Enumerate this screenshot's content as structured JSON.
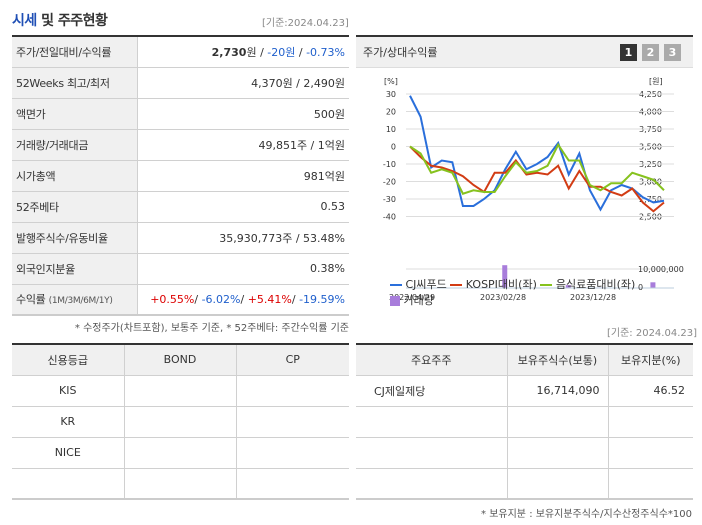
{
  "header": {
    "title_hl": "시세",
    "title_rest": " 및 주주현황",
    "date": "[기준:2024.04.23]"
  },
  "info": {
    "rows": [
      {
        "label": "주가/전일대비/수익률",
        "price": "2,730",
        "unit": "원",
        "sep": " / ",
        "change": "-20원",
        "sep2": " / ",
        "rate": "-0.73%"
      },
      {
        "label": "52Weeks 최고/최저",
        "value": "4,370원 / 2,490원"
      },
      {
        "label": "액면가",
        "value": "500원"
      },
      {
        "label": "거래량/거래대금",
        "value": "49,851주 / 1억원"
      },
      {
        "label": "시가총액",
        "value": "981억원"
      },
      {
        "label": "52주베타",
        "value": "0.53"
      },
      {
        "label": "발행주식수/유동비율",
        "value": "35,930,773주 / 53.48%"
      },
      {
        "label": "외국인지분율",
        "value": "0.38%"
      },
      {
        "label": "수익률",
        "sub": "(1M/3M/6M/1Y)",
        "r1": "+0.55%",
        "r2": "-6.02%",
        "r3": "+5.41%",
        "r4": "-19.59%"
      }
    ],
    "note": "* 수정주가(차트포함), 보통주 기준, * 52주베타: 주간수익률 기준"
  },
  "chart": {
    "title": "주가/상대수익률",
    "pages": [
      "1",
      "2",
      "3"
    ]
  },
  "chart_data": {
    "type": "line",
    "title": "주가/상대수익률",
    "ylabel_left": "[%]",
    "ylabel_right": "[원]",
    "yticks_left": [
      "30",
      "20",
      "10",
      "0",
      "-10",
      "-20",
      "-30",
      "-40"
    ],
    "yticks_right": [
      "4,250",
      "4,000",
      "3,750",
      "3,500",
      "3,250",
      "3,000",
      "2,750",
      "2,500"
    ],
    "volume_ticks": [
      "10,000,000",
      "0"
    ],
    "xticks": [
      "2022/04/29",
      "2023/02/28",
      "2023/12/28"
    ],
    "series": [
      {
        "name": "CJ씨푸드",
        "color": "#2a6fdb",
        "values": [
          29,
          17,
          -12,
          -8,
          -9,
          -34,
          -34,
          -30,
          -25,
          -13,
          -3,
          -13,
          -10,
          -6,
          2,
          -16,
          -4,
          -25,
          -36,
          -25,
          -22,
          -24,
          -29,
          -32,
          -31
        ]
      },
      {
        "name": "KOSPI대비(좌)",
        "color": "#d23c14",
        "values": [
          0,
          -6,
          -11,
          -12,
          -14,
          -17,
          -22,
          -26,
          -15,
          -15,
          -8,
          -16,
          -15,
          -16,
          -11,
          -24,
          -14,
          -23,
          -23,
          -26,
          -28,
          -24,
          -32,
          -37,
          -32
        ]
      },
      {
        "name": "음식료품대비(좌)",
        "color": "#86c21e",
        "values": [
          0,
          -4,
          -15,
          -13,
          -15,
          -27,
          -25,
          -26,
          -26,
          -17,
          -9,
          -15,
          -14,
          -11,
          1,
          -8,
          -8,
          -22,
          -25,
          -21,
          -21,
          -15,
          -17,
          -19,
          -25
        ]
      },
      {
        "name": "거래량",
        "color": "#a87ddb",
        "type": "bar",
        "values": [
          0.3,
          0,
          0,
          0,
          0,
          0,
          0,
          0,
          0,
          12,
          0,
          0,
          0,
          0,
          0,
          1.5,
          0,
          0,
          0.3,
          0,
          0,
          0,
          0,
          3,
          0
        ]
      }
    ],
    "ylim": [
      -40,
      30
    ]
  },
  "legend": [
    "CJ씨푸드",
    "KOSPI대비(좌)",
    "음식료품대비(좌)",
    "거래량"
  ],
  "credit": {
    "headers": [
      "신용등급",
      "BOND",
      "CP"
    ],
    "rows": [
      [
        "KIS",
        "",
        ""
      ],
      [
        "KR",
        "",
        ""
      ],
      [
        "NICE",
        "",
        ""
      ],
      [
        "",
        "",
        ""
      ]
    ]
  },
  "holders": {
    "date": "[기준: 2024.04.23]",
    "headers": [
      "주요주주",
      "보유주식수(보통)",
      "보유지분(%)"
    ],
    "rows": [
      [
        "CJ제일제당",
        "16,714,090",
        "46.52"
      ],
      [
        "",
        "",
        ""
      ],
      [
        "",
        "",
        ""
      ],
      [
        "",
        "",
        ""
      ]
    ],
    "note": "* 보유지분 : 보유지분주식수/지수산정주식수*100"
  }
}
